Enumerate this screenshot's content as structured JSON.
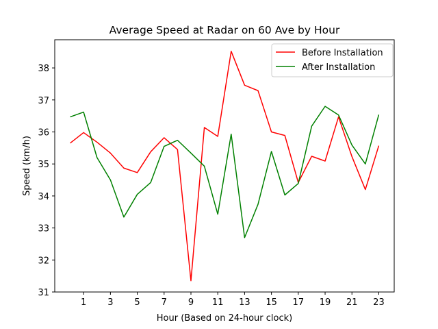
{
  "chart_data": {
    "type": "line",
    "title": "Average Speed at Radar on 60 Ave by Hour",
    "xlabel": "Hour (Based on 24-hour clock)",
    "ylabel": "Speed (km/h)",
    "x": [
      0,
      1,
      2,
      3,
      4,
      5,
      6,
      7,
      8,
      9,
      10,
      11,
      12,
      13,
      14,
      15,
      16,
      17,
      18,
      19,
      20,
      21,
      22,
      23
    ],
    "xticks": [
      1,
      3,
      5,
      7,
      9,
      11,
      13,
      15,
      17,
      19,
      21,
      23
    ],
    "yticks": [
      31,
      32,
      33,
      34,
      35,
      36,
      37,
      38
    ],
    "xlim": [
      -1.15,
      24.15
    ],
    "ylim": [
      31.0,
      38.88
    ],
    "grid": false,
    "legend_position": "upper right",
    "series": [
      {
        "name": "Before Installation",
        "color": "#ff0000",
        "values": [
          35.65,
          35.98,
          35.68,
          35.34,
          34.87,
          34.73,
          35.38,
          35.82,
          35.45,
          31.35,
          36.14,
          35.86,
          38.52,
          37.46,
          37.29,
          36.0,
          35.89,
          34.42,
          35.24,
          35.09,
          36.47,
          35.23,
          34.2,
          35.57
        ]
      },
      {
        "name": "After Installation",
        "color": "#008000",
        "values": [
          36.47,
          36.62,
          35.2,
          34.5,
          33.34,
          34.05,
          34.42,
          35.55,
          35.74,
          35.34,
          34.93,
          33.43,
          35.93,
          32.7,
          33.74,
          35.39,
          34.03,
          34.39,
          36.18,
          36.8,
          36.53,
          35.59,
          35.0,
          36.54
        ]
      }
    ]
  }
}
